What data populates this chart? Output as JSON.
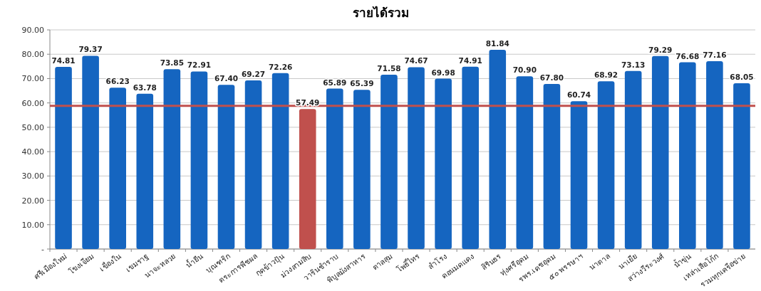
{
  "chart_data": {
    "type": "bar",
    "title": "รายได้รวม",
    "categories": [
      "ศรีเมืองใหม่",
      "โขงเจียม",
      "เขื่องใน",
      "เขมราฐ",
      "นาจะหลวย",
      "น้ำยืน",
      "บุณฑริก",
      "ตระการพืชผล",
      "กุดข้าวปุ้น",
      "ม่วงสามสิบ",
      "วารินชำราบ",
      "พิบูลมังสาหาร",
      "ตาลสุม",
      "โพธิ์ไทร",
      "สำโรง",
      "ดอนมดแดง",
      "สิรินธร",
      "ทุ่งศรีอุดม",
      "รพร.เดชอุดม",
      "๕๐ พรรษาฯ",
      "นาตาล",
      "นาเยีย",
      "สว่างวีระวงศ์",
      "น้ำขุ่น",
      "เหล่าเสือโก้ก",
      "รวมทุกเครือข่าย"
    ],
    "values": [
      74.81,
      79.37,
      66.23,
      63.78,
      73.85,
      72.91,
      67.4,
      69.27,
      72.26,
      57.49,
      65.89,
      65.39,
      71.58,
      74.67,
      69.98,
      74.91,
      81.84,
      70.9,
      67.8,
      60.74,
      68.92,
      73.13,
      79.29,
      76.68,
      77.16,
      68.05
    ],
    "value_labels": [
      "74.81",
      "79.37",
      "66.23",
      "63.78",
      "73.85",
      "72.91",
      "67.40",
      "69.27",
      "72.26",
      "57.49",
      "65.89",
      "65.39",
      "71.58",
      "74.67",
      "69.98",
      "74.91",
      "81.84",
      "70.90",
      "67.80",
      "60.74",
      "68.92",
      "73.13",
      "79.29",
      "76.68",
      "77.16",
      "68.05"
    ],
    "colors": [
      "#1565c0",
      "#1565c0",
      "#1565c0",
      "#1565c0",
      "#1565c0",
      "#1565c0",
      "#1565c0",
      "#1565c0",
      "#1565c0",
      "#c0504d",
      "#1565c0",
      "#1565c0",
      "#1565c0",
      "#1565c0",
      "#1565c0",
      "#1565c0",
      "#1565c0",
      "#1565c0",
      "#1565c0",
      "#1565c0",
      "#1565c0",
      "#1565c0",
      "#1565c0",
      "#1565c0",
      "#1565c0",
      "#1565c0"
    ],
    "ylim": [
      0,
      90
    ],
    "yticks": [
      {
        "value": 0,
        "label": "-"
      },
      {
        "value": 10,
        "label": "10.00"
      },
      {
        "value": 20,
        "label": "20.00"
      },
      {
        "value": 30,
        "label": "30.00"
      },
      {
        "value": 40,
        "label": "40.00"
      },
      {
        "value": 50,
        "label": "50.00"
      },
      {
        "value": 60,
        "label": "60.00"
      },
      {
        "value": 70,
        "label": "70.00"
      },
      {
        "value": 80,
        "label": "80.00"
      },
      {
        "value": 90,
        "label": "90.00"
      }
    ],
    "grid": "y",
    "ref_lines": [
      {
        "axis": "y",
        "value": 58.8,
        "color": "#c0504d"
      }
    ]
  }
}
